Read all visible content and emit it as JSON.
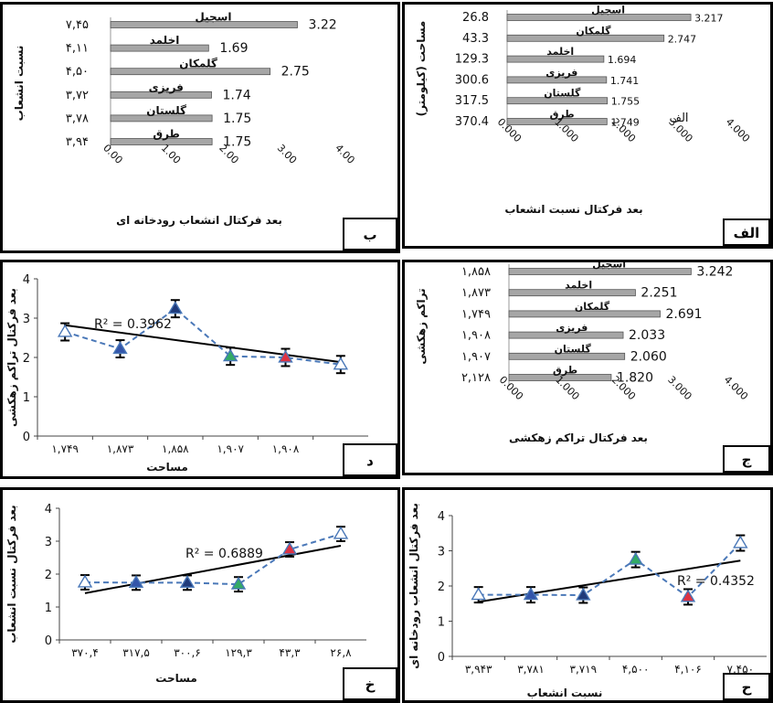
{
  "panels": [
    {
      "key": "alef",
      "type": "hbar",
      "letter": "الف",
      "ylabel": "مساحت (کیلومتر)",
      "xlabel": "بعد فرکتال نسبت انشعاب",
      "annotation": "الف",
      "xticks": [
        "0.000",
        "1.000",
        "2.000",
        "3.000",
        "4.000"
      ],
      "xlim": [
        0,
        4
      ],
      "bars": [
        {
          "name": "اسجیل",
          "left": "26.8",
          "value": 3.217,
          "label": "3.217"
        },
        {
          "name": "گلمکان",
          "left": "43.3",
          "value": 2.747,
          "label": "2.747"
        },
        {
          "name": "اخلمد",
          "left": "129.3",
          "value": 1.694,
          "label": "1.694"
        },
        {
          "name": "فریزی",
          "left": "300.6",
          "value": 1.741,
          "label": "1.741"
        },
        {
          "name": "گلستان",
          "left": "317.5",
          "value": 1.755,
          "label": "1.755"
        },
        {
          "name": "طرق",
          "left": "370.4",
          "value": 1.749,
          "label": "1.749"
        }
      ]
    },
    {
      "key": "be",
      "type": "hbar",
      "letter": "ب",
      "ylabel": "نسبت انشعاب",
      "xlabel": "بعد فرکتال انشعاب رودخانه ای",
      "xticks": [
        "0.00",
        "1.00",
        "2.00",
        "3.00",
        "4.00"
      ],
      "xlim": [
        0,
        4
      ],
      "bars": [
        {
          "name": "اسجیل",
          "left": "۷,۴۵",
          "value": 3.22,
          "label": "3.22"
        },
        {
          "name": "اخلمد",
          "left": "۴,۱۱",
          "value": 1.69,
          "label": "1.69"
        },
        {
          "name": "گلمکان",
          "left": "۴,۵۰",
          "value": 2.75,
          "label": "2.75"
        },
        {
          "name": "فریزی",
          "left": "۳,۷۲",
          "value": 1.74,
          "label": "1.74"
        },
        {
          "name": "گلستان",
          "left": "۳,۷۸",
          "value": 1.75,
          "label": "1.75"
        },
        {
          "name": "طرق",
          "left": "۳,۹۴",
          "value": 1.75,
          "label": "1.75"
        }
      ]
    },
    {
      "key": "jim",
      "type": "hbar",
      "letter": "ج",
      "ylabel": "تراکم زهکشی",
      "xlabel": "بعد فرکتال تراکم زهکشی",
      "xticks": [
        "0.000",
        "1.000",
        "2.000",
        "3.000",
        "4.000"
      ],
      "xlim": [
        0,
        4
      ],
      "bars": [
        {
          "name": "اسجیل",
          "left": "۱,۸۵۸",
          "value": 3.242,
          "label": "3.242"
        },
        {
          "name": "اخلمد",
          "left": "۱,۸۷۳",
          "value": 2.251,
          "label": "2.251"
        },
        {
          "name": "گلمکان",
          "left": "۱,۷۴۹",
          "value": 2.691,
          "label": "2.691"
        },
        {
          "name": "فریزی",
          "left": "۱,۹۰۸",
          "value": 2.033,
          "label": "2.033"
        },
        {
          "name": "گلستان",
          "left": "۱,۹۰۷",
          "value": 2.06,
          "label": "2.060"
        },
        {
          "name": "طرق",
          "left": "۲,۱۲۸",
          "value": 1.82,
          "label": "1.820"
        }
      ]
    },
    {
      "key": "dal",
      "type": "line",
      "letter": "د",
      "ylabel": "بعد فرکتال تراکم زهکشی",
      "xlabel": "مساحت",
      "yticks": [
        "0",
        "1",
        "2",
        "3",
        "4"
      ],
      "ylim": [
        0,
        4
      ],
      "categories": [
        "۱,۷۴۹",
        "۱,۸۷۳",
        "۱,۸۵۸",
        "۱,۹۰۷",
        "۱,۹۰۸",
        ""
      ],
      "values": [
        2.65,
        2.22,
        3.24,
        2.03,
        2.0,
        1.82
      ],
      "trend": [
        2.82,
        1.88
      ],
      "r2": "R² = 0.3962",
      "colors": [
        "#ffffff",
        "#3355aa",
        "#1f3a7a",
        "#33aa66",
        "#dd3344",
        "#ffffff"
      ]
    },
    {
      "key": "khe",
      "type": "line",
      "letter": "خ",
      "ylabel": "بعد فرکتال نسبت انشعاب",
      "xlabel": "مساحت",
      "yticks": [
        "0",
        "1",
        "2",
        "3",
        "4"
      ],
      "ylim": [
        0,
        4
      ],
      "categories": [
        "۳۷۰,۴",
        "۳۱۷,۵",
        "۳۰۰,۶",
        "۱۲۹,۳",
        "۴۳,۳",
        "۲۶,۸"
      ],
      "values": [
        1.75,
        1.74,
        1.74,
        1.69,
        2.75,
        3.22
      ],
      "trend": [
        1.42,
        2.86
      ],
      "r2": "R² = 0.6889",
      "colors": [
        "#ffffff",
        "#3355aa",
        "#1f3a7a",
        "#33aa66",
        "#dd3344",
        "#ffffff"
      ]
    },
    {
      "key": "he",
      "type": "line",
      "letter": "ح",
      "ylabel": "بعد فرکتال انشعاب رودخانه ای",
      "xlabel": "نسبت انشعاب",
      "yticks": [
        "0",
        "1",
        "2",
        "3",
        "4"
      ],
      "ylim": [
        0,
        4
      ],
      "categories": [
        "۳,۹۴۳",
        "۳,۷۸۱",
        "۳,۷۱۹",
        "۴,۵۰۰",
        "۴,۱۰۶",
        "۷,۴۵۰"
      ],
      "values": [
        1.75,
        1.75,
        1.74,
        2.75,
        1.69,
        3.22
      ],
      "trend": [
        1.55,
        2.72
      ],
      "r2": "R² = 0.4352",
      "colors": [
        "#ffffff",
        "#3355aa",
        "#1f3a7a",
        "#33aa66",
        "#dd3344",
        "#ffffff"
      ]
    }
  ],
  "colors": {
    "bar": "#a6a6a6",
    "bar_edge": "#555555",
    "series": "#4a78b8",
    "trend": "#000000"
  }
}
